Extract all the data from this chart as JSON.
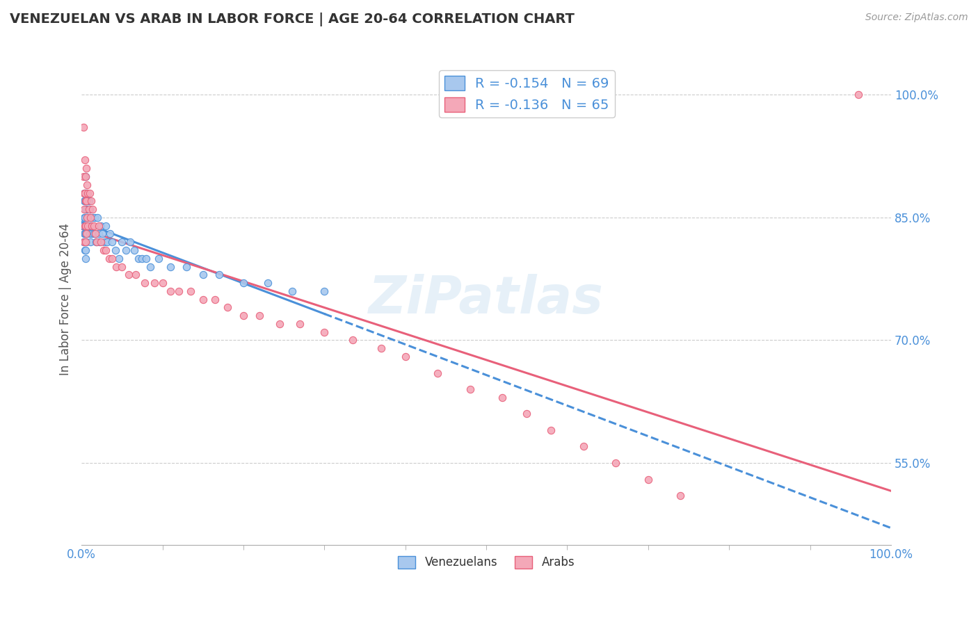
{
  "title": "VENEZUELAN VS ARAB IN LABOR FORCE | AGE 20-64 CORRELATION CHART",
  "source_text": "Source: ZipAtlas.com",
  "ylabel": "In Labor Force | Age 20-64",
  "xlim": [
    0.0,
    1.0
  ],
  "ylim": [
    0.45,
    1.05
  ],
  "ytick_vals": [
    0.55,
    0.7,
    0.85,
    1.0
  ],
  "ytick_labels": [
    "55.0%",
    "70.0%",
    "85.0%",
    "100.0%"
  ],
  "xtick_labels": [
    "0.0%",
    "100.0%"
  ],
  "color_venezuelan": "#a8c8ee",
  "color_arab": "#f4a8b8",
  "line_color_venezuelan": "#4a90d9",
  "line_color_arab": "#e8607a",
  "watermark": "ZiPatlas",
  "venezuelan_x": [
    0.002,
    0.002,
    0.003,
    0.003,
    0.003,
    0.003,
    0.004,
    0.004,
    0.004,
    0.004,
    0.004,
    0.005,
    0.005,
    0.005,
    0.005,
    0.005,
    0.005,
    0.005,
    0.006,
    0.006,
    0.006,
    0.006,
    0.007,
    0.007,
    0.007,
    0.008,
    0.008,
    0.009,
    0.009,
    0.01,
    0.01,
    0.011,
    0.011,
    0.012,
    0.013,
    0.014,
    0.015,
    0.016,
    0.017,
    0.018,
    0.02,
    0.021,
    0.022,
    0.024,
    0.026,
    0.028,
    0.03,
    0.032,
    0.035,
    0.038,
    0.042,
    0.046,
    0.05,
    0.055,
    0.06,
    0.065,
    0.07,
    0.075,
    0.08,
    0.085,
    0.095,
    0.11,
    0.13,
    0.15,
    0.17,
    0.2,
    0.23,
    0.26,
    0.3
  ],
  "venezuelan_y": [
    0.84,
    0.82,
    0.88,
    0.87,
    0.85,
    0.83,
    0.9,
    0.87,
    0.85,
    0.83,
    0.81,
    0.9,
    0.88,
    0.86,
    0.84,
    0.83,
    0.81,
    0.8,
    0.88,
    0.86,
    0.84,
    0.82,
    0.87,
    0.85,
    0.83,
    0.86,
    0.84,
    0.87,
    0.84,
    0.86,
    0.83,
    0.85,
    0.82,
    0.84,
    0.83,
    0.85,
    0.83,
    0.85,
    0.83,
    0.82,
    0.85,
    0.83,
    0.82,
    0.84,
    0.83,
    0.82,
    0.84,
    0.82,
    0.83,
    0.82,
    0.81,
    0.8,
    0.82,
    0.81,
    0.82,
    0.81,
    0.8,
    0.8,
    0.8,
    0.79,
    0.8,
    0.79,
    0.79,
    0.78,
    0.78,
    0.77,
    0.77,
    0.76,
    0.76
  ],
  "arab_x": [
    0.002,
    0.002,
    0.003,
    0.003,
    0.003,
    0.004,
    0.004,
    0.004,
    0.005,
    0.005,
    0.005,
    0.005,
    0.006,
    0.006,
    0.006,
    0.007,
    0.007,
    0.008,
    0.008,
    0.009,
    0.01,
    0.011,
    0.012,
    0.013,
    0.014,
    0.015,
    0.017,
    0.019,
    0.021,
    0.024,
    0.027,
    0.03,
    0.034,
    0.038,
    0.043,
    0.05,
    0.058,
    0.067,
    0.078,
    0.09,
    0.1,
    0.11,
    0.12,
    0.135,
    0.15,
    0.165,
    0.18,
    0.2,
    0.22,
    0.245,
    0.27,
    0.3,
    0.335,
    0.37,
    0.4,
    0.44,
    0.48,
    0.52,
    0.55,
    0.58,
    0.62,
    0.66,
    0.7,
    0.74,
    0.96
  ],
  "arab_y": [
    0.96,
    0.9,
    0.88,
    0.86,
    0.82,
    0.92,
    0.88,
    0.84,
    0.9,
    0.87,
    0.84,
    0.82,
    0.91,
    0.87,
    0.83,
    0.89,
    0.85,
    0.88,
    0.84,
    0.86,
    0.88,
    0.85,
    0.87,
    0.84,
    0.86,
    0.84,
    0.83,
    0.82,
    0.84,
    0.82,
    0.81,
    0.81,
    0.8,
    0.8,
    0.79,
    0.79,
    0.78,
    0.78,
    0.77,
    0.77,
    0.77,
    0.76,
    0.76,
    0.76,
    0.75,
    0.75,
    0.74,
    0.73,
    0.73,
    0.72,
    0.72,
    0.71,
    0.7,
    0.69,
    0.68,
    0.66,
    0.64,
    0.63,
    0.61,
    0.59,
    0.57,
    0.55,
    0.53,
    0.51,
    1.0
  ]
}
